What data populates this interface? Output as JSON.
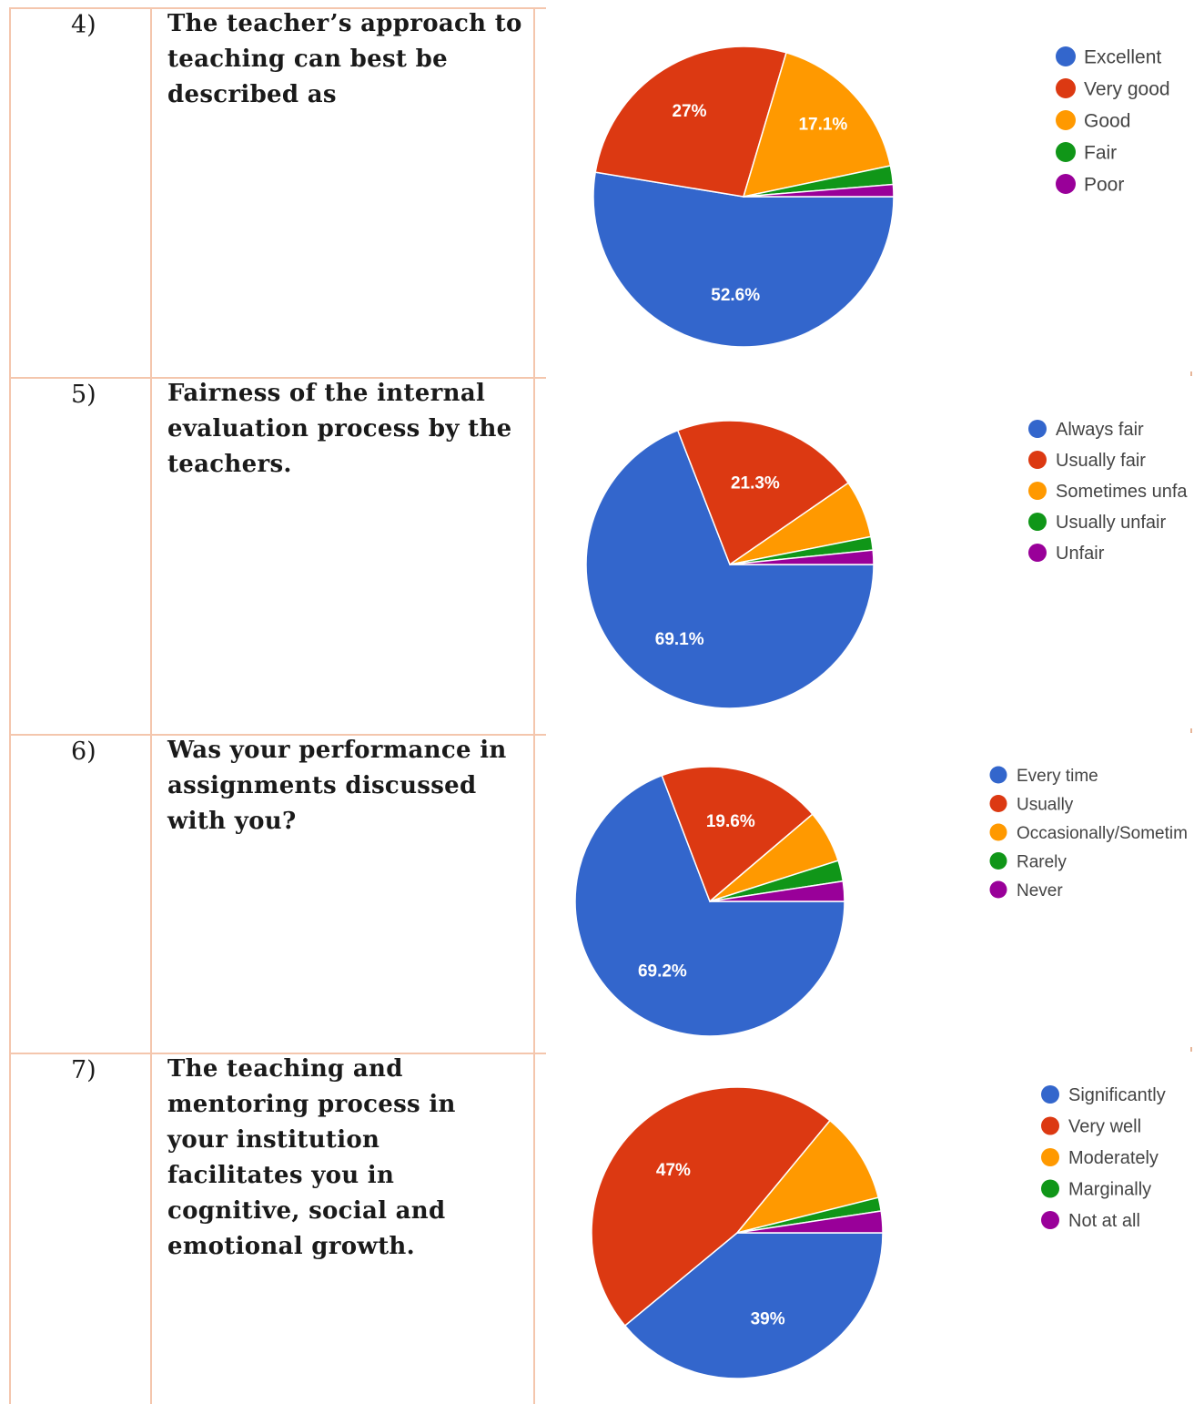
{
  "rows": [
    {
      "number": "4)",
      "question": "The teacher’s approach to teaching can best be described as",
      "chart": {
        "labels": [
          "Excellent",
          "Very good",
          "Good",
          "Fair",
          "Poor"
        ],
        "values": [
          52.6,
          27,
          17.1,
          2.0,
          1.3
        ],
        "display": [
          "52.6%",
          "27%",
          "17.1%",
          "",
          ""
        ]
      }
    },
    {
      "number": "5)",
      "question": "Fairness of the internal evaluation process by the teachers.",
      "chart": {
        "labels": [
          "Always fair",
          "Usually fair",
          "Sometimes unfa",
          "Usually unfair",
          "Unfair"
        ],
        "values": [
          69.1,
          21.3,
          6.5,
          1.5,
          1.6
        ],
        "display": [
          "69.1%",
          "21.3%",
          "",
          "",
          ""
        ]
      }
    },
    {
      "number": "6)",
      "question": "Was your performance in assignments discussed with you?",
      "chart": {
        "labels": [
          "Every time",
          "Usually",
          "Occasionally/Sometim",
          "Rarely",
          "Never"
        ],
        "values": [
          69.2,
          19.6,
          6.3,
          2.5,
          2.4
        ],
        "display": [
          "69.2%",
          "19.6%",
          "",
          "",
          ""
        ]
      }
    },
    {
      "number": "7)",
      "question": "The teaching and mentoring process in your institution facilitates you in cognitive, social and emotional growth.",
      "chart": {
        "labels": [
          "Significantly",
          "Very well",
          "Moderately",
          "Marginally",
          "Not at all"
        ],
        "values": [
          39,
          47,
          10.1,
          1.5,
          2.4
        ],
        "display": [
          "39%",
          "47%",
          "",
          "",
          ""
        ]
      }
    }
  ],
  "colors": [
    "#3366cc",
    "#dc3912",
    "#ff9900",
    "#109618",
    "#990099"
  ],
  "chart_data": [
    {
      "type": "pie",
      "categories": [
        "Excellent",
        "Very good",
        "Good",
        "Fair",
        "Poor"
      ],
      "values": [
        52.6,
        27,
        17.1,
        2.0,
        1.3
      ]
    },
    {
      "type": "pie",
      "categories": [
        "Always fair",
        "Usually fair",
        "Sometimes unfa",
        "Usually unfair",
        "Unfair"
      ],
      "values": [
        69.1,
        21.3,
        6.5,
        1.5,
        1.6
      ]
    },
    {
      "type": "pie",
      "categories": [
        "Every time",
        "Usually",
        "Occasionally/Sometim",
        "Rarely",
        "Never"
      ],
      "values": [
        69.2,
        19.6,
        6.3,
        2.5,
        2.4
      ]
    },
    {
      "type": "pie",
      "categories": [
        "Significantly",
        "Very well",
        "Moderately",
        "Marginally",
        "Not at all"
      ],
      "values": [
        39,
        47,
        10.1,
        1.5,
        2.4
      ]
    }
  ]
}
